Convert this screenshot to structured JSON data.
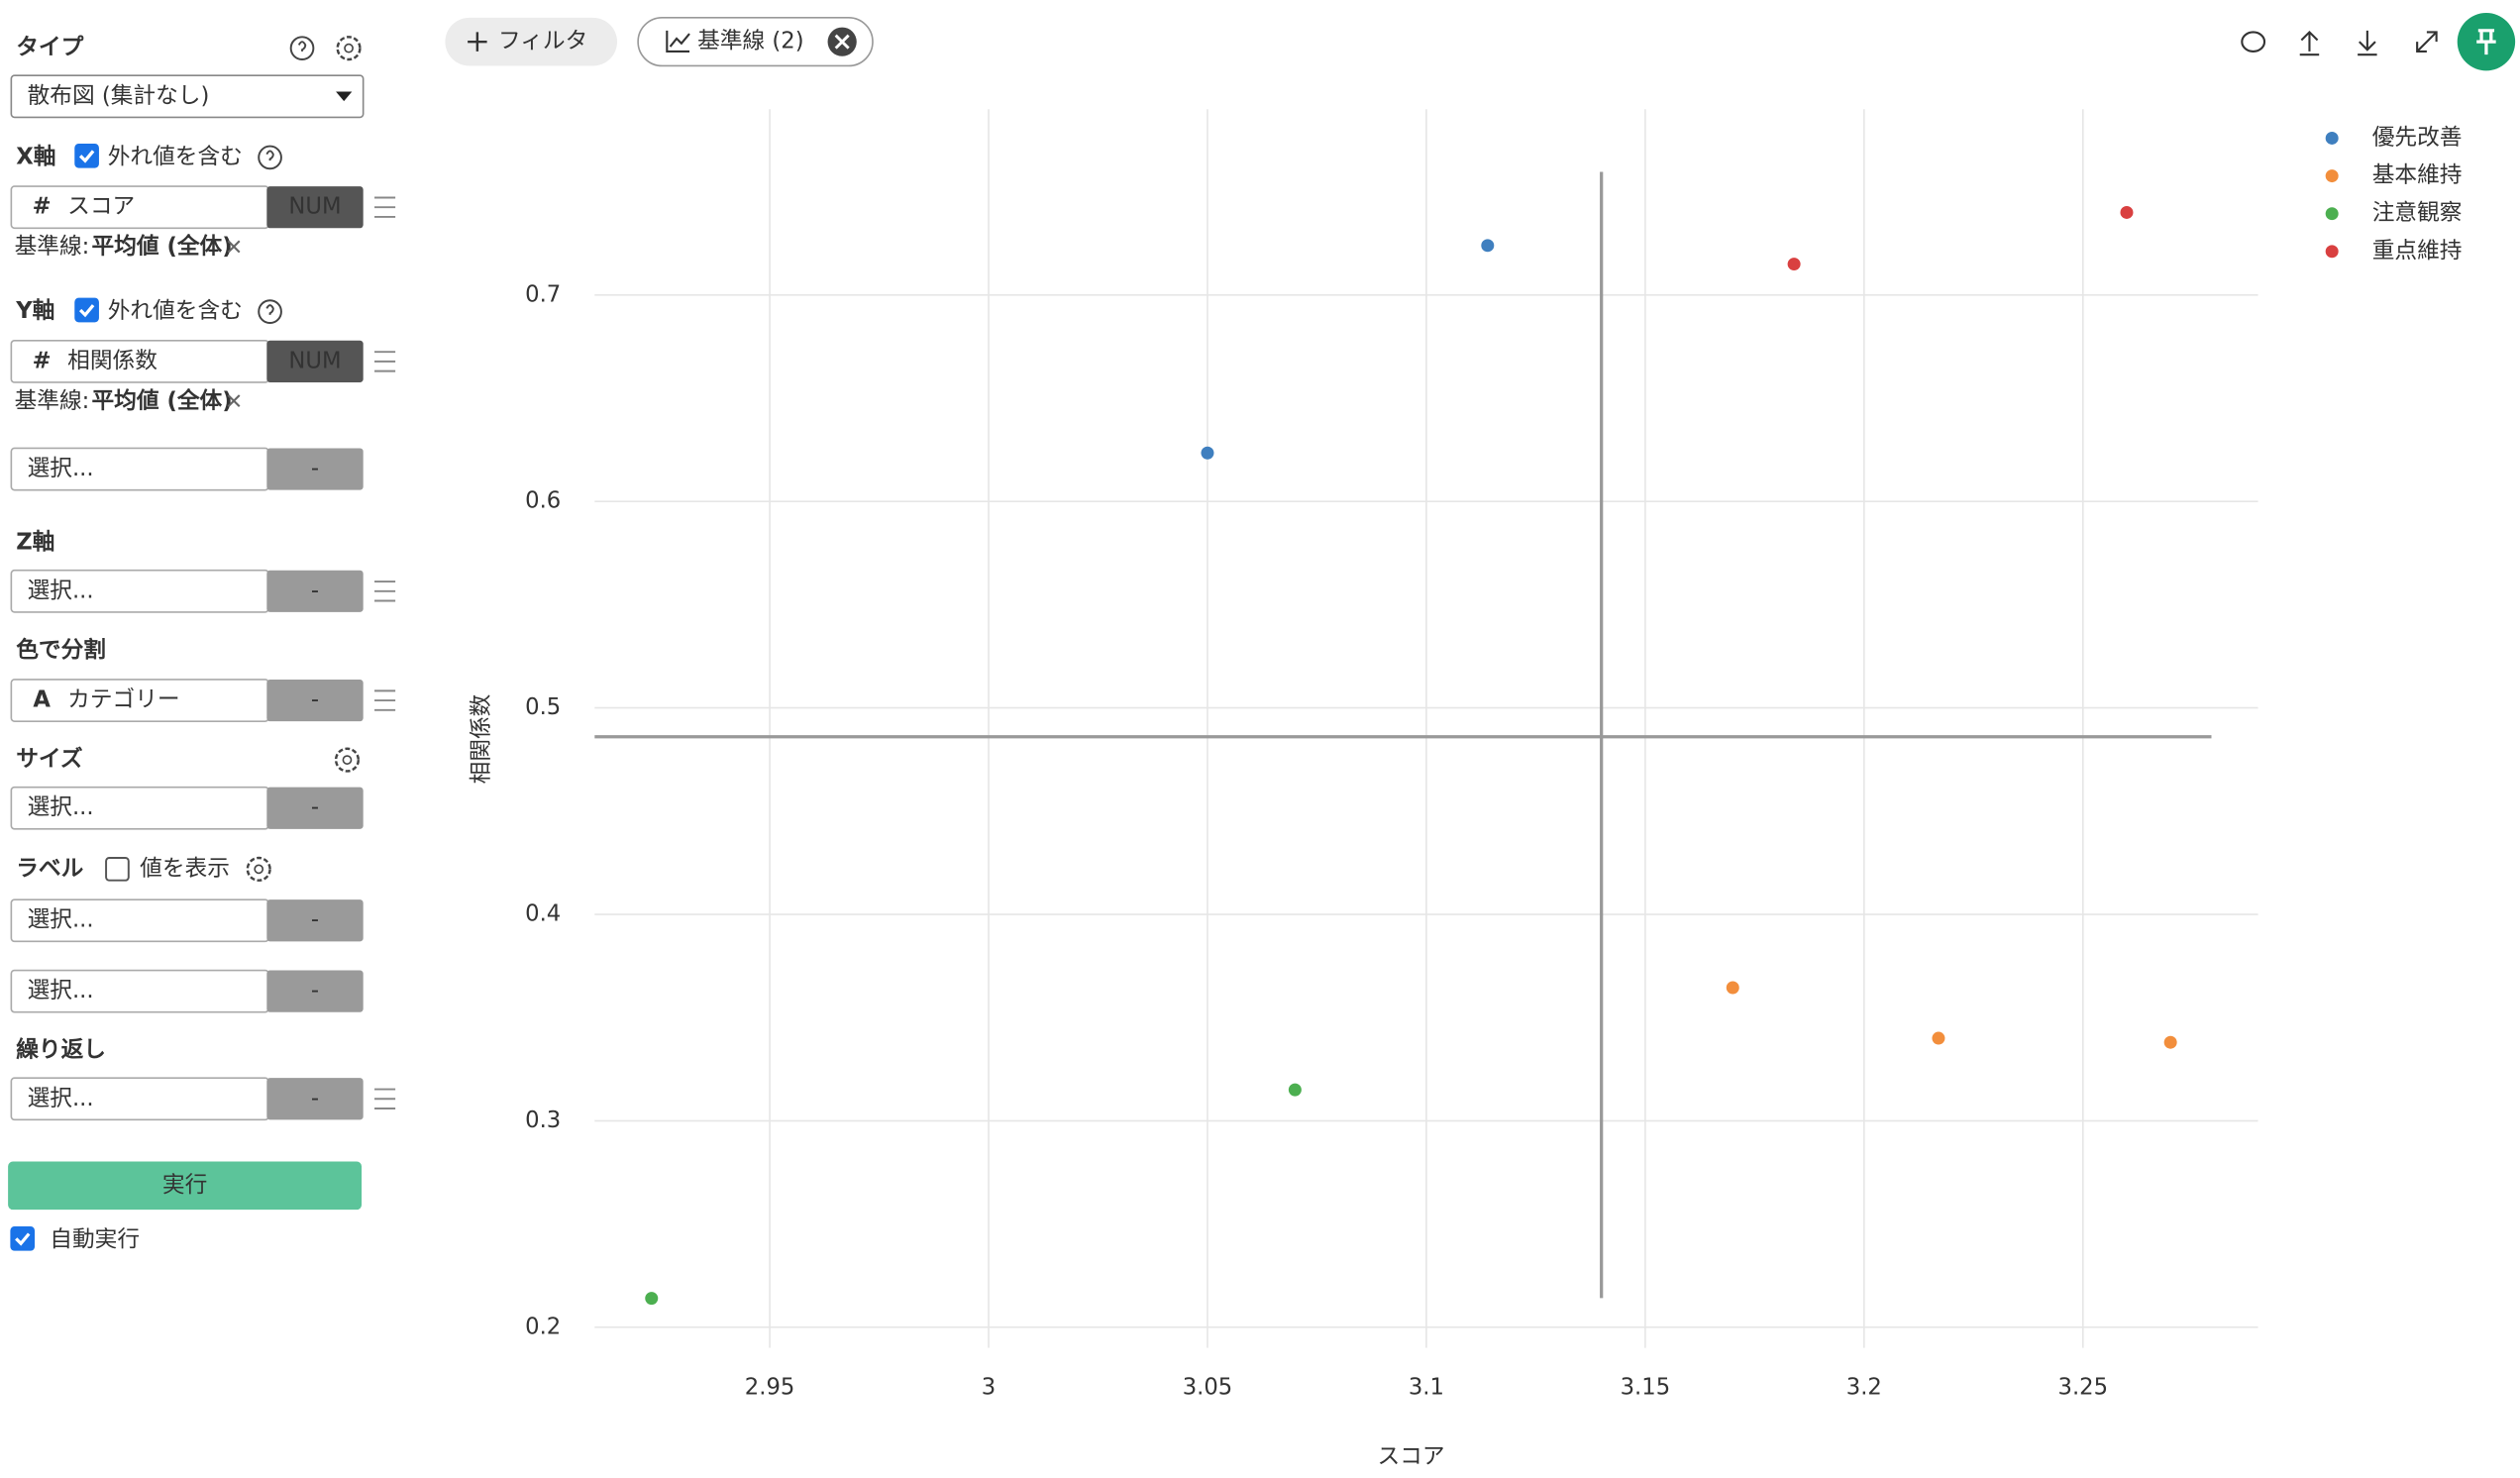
{
  "sidebar": {
    "type_label": "タイプ",
    "type_value": "散布図 (集計なし)",
    "x_axis": {
      "label": "X軸",
      "outliers": "外れ値を含む",
      "icon": "#",
      "column": "スコア",
      "kind": "NUM",
      "baseline_label": "基準線:",
      "baseline_value": "平均値 (全体)"
    },
    "y_axis": {
      "label": "Y軸",
      "outliers": "外れ値を含む",
      "icon": "#",
      "column": "相関係数",
      "kind": "NUM",
      "baseline_label": "基準線:",
      "baseline_value": "平均値 (全体)"
    },
    "extra": {
      "placeholder": "選択...",
      "button": "-"
    },
    "z_axis": {
      "label": "Z軸",
      "placeholder": "選択...",
      "button": "-"
    },
    "color": {
      "label": "色で分割",
      "icon": "A",
      "column": "カテゴリー",
      "button": "-"
    },
    "size": {
      "label": "サイズ",
      "placeholder": "選択...",
      "button": "-"
    },
    "label": {
      "label": "ラベル",
      "show_values": "値を表示",
      "rows": [
        {
          "placeholder": "選択...",
          "button": "-"
        },
        {
          "placeholder": "選択...",
          "button": "-"
        }
      ]
    },
    "repeat": {
      "label": "繰り返し",
      "placeholder": "選択...",
      "button": "-"
    },
    "run": "実行",
    "auto_run": "自動実行"
  },
  "toolbar": {
    "filter": "フィルタ",
    "baseline": "基準線 (2)"
  },
  "chart_data": {
    "type": "scatter",
    "x_label": "スコア",
    "y_label": "相関係数",
    "xlim": [
      2.91,
      3.29
    ],
    "ylim": [
      0.19,
      0.79
    ],
    "xticks": [
      2.95,
      3,
      3.05,
      3.1,
      3.15,
      3.2,
      3.25
    ],
    "yticks": [
      0.2,
      0.3,
      0.4,
      0.5,
      0.6,
      0.7
    ],
    "grid": true,
    "legend": "top-right",
    "baseline_x": 3.14,
    "baseline_y": 0.486,
    "series": [
      {
        "name": "優先改善",
        "color": "#3f7fbf",
        "x": [
          3.114,
          3.05
        ],
        "values": [
          0.724,
          0.6235
        ]
      },
      {
        "name": "基本維持",
        "color": "#f28e3c",
        "x": [
          3.17,
          3.217,
          3.27
        ],
        "values": [
          0.3645,
          0.34,
          0.338
        ]
      },
      {
        "name": "注意観察",
        "color": "#4caf50",
        "x": [
          3.07,
          2.923
        ],
        "values": [
          0.315,
          0.214
        ]
      },
      {
        "name": "重点維持",
        "color": "#d94040",
        "x": [
          3.184,
          3.26
        ],
        "values": [
          0.715,
          0.74
        ]
      }
    ]
  }
}
